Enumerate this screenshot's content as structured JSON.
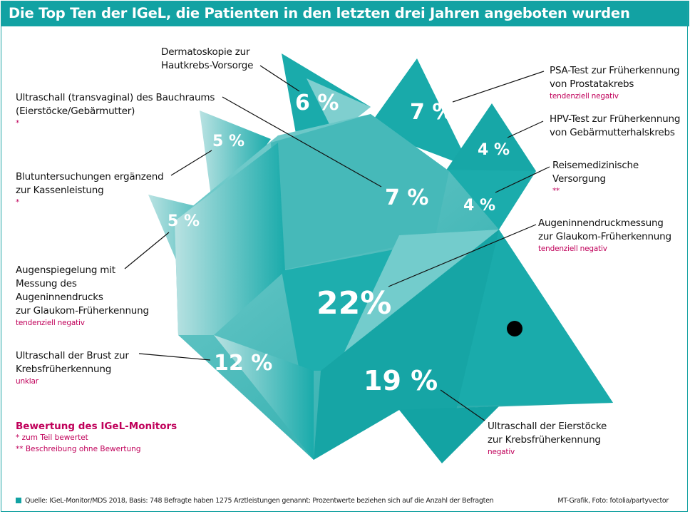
{
  "title": "Die Top Ten der IGeL, die Patienten in den letzten drei Jahren angeboten wurden",
  "colors": {
    "teal": "#12a2a3",
    "rating": "#c0005a",
    "body": "#1aabab"
  },
  "chart_data": {
    "type": "table",
    "title": "Die Top Ten der IGeL, die Patienten in den letzten drei Jahren angeboten wurden",
    "items": [
      {
        "label": "Augeninnendruckmessung zur Glaukom-Früherkennung",
        "value": 22,
        "value_label": "22%",
        "rating": "tendenziell negativ"
      },
      {
        "label": "Ultraschall der Eierstöcke zur Krebsfrüherkennung",
        "value": 19,
        "value_label": "19 %",
        "rating": "negativ"
      },
      {
        "label": "Ultraschall der Brust zur Krebsfrüherkennung",
        "value": 12,
        "value_label": "12 %",
        "rating": "unklar"
      },
      {
        "label": "Ultraschall (transvaginal) des Bauchraums (Eierstöcke/Gebärmutter)",
        "value": 7,
        "value_label": "7 %",
        "rating": "*"
      },
      {
        "label": "PSA-Test zur Früherkennung von Prostatakrebs",
        "value": 7,
        "value_label": "7 %",
        "rating": "tendenziell negativ"
      },
      {
        "label": "Dermatoskopie zur Hautkrebs-Vorsorge",
        "value": 6,
        "value_label": "6 %",
        "rating": ""
      },
      {
        "label": "Blutuntersuchungen ergänzend zur Kassenleistung",
        "value": 5,
        "value_label": "5 %",
        "rating": "*"
      },
      {
        "label": "Augenspiegelung mit Messung des Augeninnendrucks zur Glaukom-Früherkennung",
        "value": 5,
        "value_label": "5 %",
        "rating": "tendenziell negativ"
      },
      {
        "label": "HPV-Test zur Früherkennung von Gebärmutterhalskrebs",
        "value": 4,
        "value_label": "4 %",
        "rating": ""
      },
      {
        "label": "Reisemedizinische Versorgung",
        "value": 4,
        "value_label": "4 %",
        "rating": "**"
      }
    ]
  },
  "labels": {
    "derma": [
      "Dermatoskopie zur",
      "Hautkrebs-Vorsorge"
    ],
    "ultra_bauch": [
      "Ultraschall (transvaginal) des Bauchraums",
      "(Eierstöcke/Gebärmutter)"
    ],
    "blut": [
      "Blutuntersuchungen ergänzend",
      "zur Kassenleistung"
    ],
    "augen": [
      "Augenspiegelung mit",
      "Messung des",
      "Augeninnendrucks",
      "zur Glaukom-Früherkennung"
    ],
    "brust": [
      "Ultraschall der Brust zur",
      "Krebsfrüherkennung"
    ],
    "psa": [
      "PSA-Test zur Früherkennung",
      "von Prostatakrebs"
    ],
    "hpv": [
      "HPV-Test zur Früherkennung",
      "von Gebärmutterhalskrebs"
    ],
    "reise": [
      "Reisemedizinische",
      "Versorgung"
    ],
    "druck": [
      "Augeninnendruckmessung",
      "zur Glaukom-Früherkennung"
    ],
    "eier": [
      "Ultraschall der Eierstöcke",
      "zur Krebsfrüherkennung"
    ]
  },
  "legend": {
    "heading": "Bewertung des IGeL-Monitors",
    "items": [
      "*  zum Teil bewertet",
      "** Beschreibung ohne Bewertung"
    ]
  },
  "footer": {
    "source": "Quelle: IGeL-Monitor/MDS 2018, Basis: 748 Befragte haben 1275 Arztleistungen genannt: Prozentwerte beziehen sich auf die Anzahl der Befragten",
    "credit": "MT-Grafik, Foto: fotolia/partyvector"
  }
}
